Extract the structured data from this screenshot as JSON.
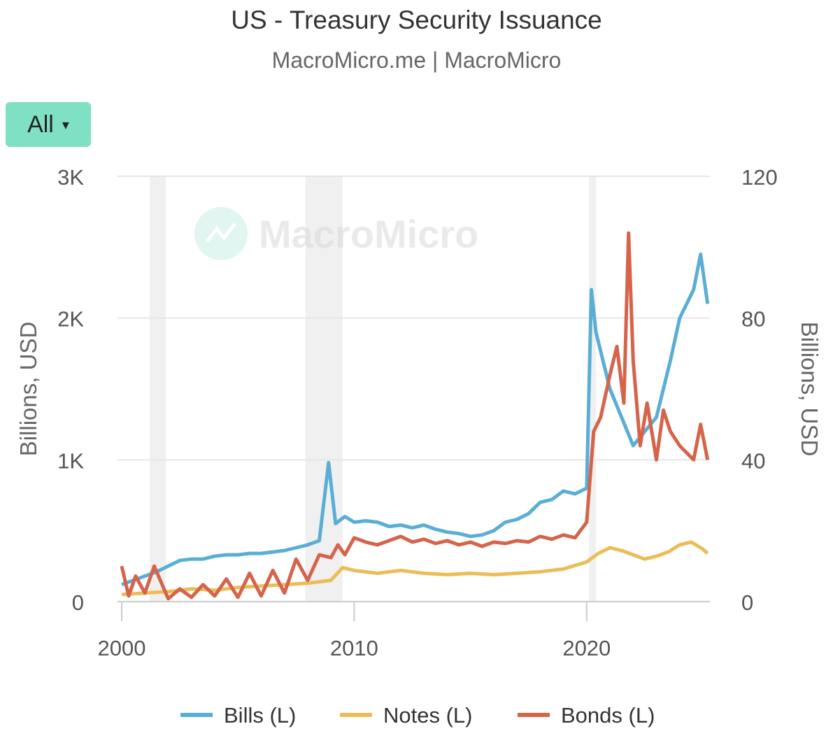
{
  "title": "US - Treasury Security Issuance",
  "subtitle": "MacroMicro.me | MacroMicro",
  "range_selector": {
    "label": "All",
    "caret": "▾"
  },
  "watermark": "MacroMicro",
  "colors": {
    "bills": "#5aaed6",
    "notes": "#ebbd58",
    "bonds": "#d5644a",
    "grid": "#e6e6e6",
    "recession": "#f0f0f0",
    "button": "#7fe0c4"
  },
  "chart_data": {
    "type": "line",
    "title": "US - Treasury Security Issuance",
    "xlabel": "",
    "xlim": [
      2000,
      2025.3
    ],
    "x_ticks": [
      "2000",
      "2010",
      "2020"
    ],
    "y_left": {
      "label": "Billions, USD",
      "lim": [
        0,
        3000
      ],
      "ticks": [
        "0",
        "1K",
        "2K",
        "3K"
      ]
    },
    "y_right": {
      "label": "Billions, USD",
      "lim": [
        0,
        120
      ],
      "ticks": [
        "0",
        "40",
        "80",
        "120"
      ]
    },
    "recession_bands": [
      [
        2001.2,
        2001.9
      ],
      [
        2007.9,
        2009.5
      ],
      [
        2020.1,
        2020.4
      ]
    ],
    "legend_position": "bottom",
    "series": [
      {
        "name": "Bills (L)",
        "axis": "left",
        "color": "#5aaed6",
        "x": [
          2000,
          2000.5,
          2001,
          2001.5,
          2002,
          2002.5,
          2003,
          2003.5,
          2004,
          2004.5,
          2005,
          2005.5,
          2006,
          2006.5,
          2007,
          2007.5,
          2008,
          2008.5,
          2008.9,
          2009.2,
          2009.6,
          2010,
          2010.5,
          2011,
          2011.5,
          2012,
          2012.5,
          2013,
          2013.5,
          2014,
          2014.5,
          2015,
          2015.5,
          2016,
          2016.5,
          2017,
          2017.5,
          2018,
          2018.5,
          2019,
          2019.5,
          2020,
          2020.2,
          2020.4,
          2020.7,
          2021,
          2021.5,
          2022,
          2022.5,
          2023,
          2023.3,
          2023.6,
          2024,
          2024.3,
          2024.6,
          2024.9,
          2025.2
        ],
        "values": [
          120,
          150,
          180,
          210,
          250,
          290,
          300,
          300,
          320,
          330,
          330,
          340,
          340,
          350,
          360,
          380,
          400,
          430,
          980,
          550,
          600,
          560,
          570,
          560,
          530,
          540,
          520,
          540,
          510,
          490,
          480,
          460,
          470,
          500,
          560,
          580,
          620,
          700,
          720,
          780,
          760,
          800,
          2200,
          1900,
          1700,
          1500,
          1300,
          1100,
          1200,
          1300,
          1500,
          1700,
          2000,
          2100,
          2200,
          2450,
          2100
        ]
      },
      {
        "name": "Notes (L)",
        "axis": "left",
        "color": "#ebbd58",
        "x": [
          2000,
          2001,
          2002,
          2003,
          2004,
          2005,
          2006,
          2007,
          2008,
          2009,
          2009.5,
          2010,
          2011,
          2012,
          2013,
          2014,
          2015,
          2016,
          2017,
          2018,
          2019,
          2020,
          2020.5,
          2021,
          2021.5,
          2022,
          2022.5,
          2023,
          2023.5,
          2024,
          2024.5,
          2025,
          2025.2
        ],
        "values": [
          50,
          60,
          70,
          90,
          80,
          100,
          110,
          120,
          130,
          150,
          240,
          220,
          200,
          220,
          200,
          190,
          200,
          190,
          200,
          210,
          230,
          280,
          340,
          380,
          360,
          330,
          300,
          320,
          350,
          400,
          420,
          370,
          340
        ]
      },
      {
        "name": "Bonds (L)",
        "axis": "left",
        "color": "#d5644a",
        "x": [
          2000,
          2000.3,
          2000.6,
          2001,
          2001.4,
          2002,
          2002.5,
          2003,
          2003.5,
          2004,
          2004.5,
          2005,
          2005.5,
          2006,
          2006.5,
          2007,
          2007.5,
          2008,
          2008.5,
          2009,
          2009.3,
          2009.6,
          2010,
          2010.5,
          2011,
          2011.5,
          2012,
          2012.5,
          2013,
          2013.5,
          2014,
          2014.5,
          2015,
          2015.5,
          2016,
          2016.5,
          2017,
          2017.5,
          2018,
          2018.5,
          2019,
          2019.5,
          2020,
          2020.3,
          2020.6,
          2021,
          2021.3,
          2021.6,
          2021.8,
          2022,
          2022.3,
          2022.6,
          2023,
          2023.3,
          2023.6,
          2024,
          2024.3,
          2024.6,
          2024.9,
          2025.2
        ],
        "values": [
          250,
          40,
          180,
          60,
          250,
          20,
          90,
          30,
          120,
          40,
          160,
          30,
          200,
          40,
          220,
          60,
          300,
          150,
          330,
          310,
          400,
          330,
          450,
          420,
          400,
          430,
          460,
          420,
          440,
          410,
          430,
          400,
          420,
          390,
          420,
          410,
          430,
          420,
          460,
          440,
          470,
          450,
          560,
          1200,
          1300,
          1600,
          1800,
          1400,
          2600,
          1700,
          1100,
          1400,
          1000,
          1350,
          1200,
          1100,
          1050,
          1000,
          1250,
          1000
        ]
      }
    ]
  },
  "legend": [
    {
      "label": "Bills (L)",
      "color": "#5aaed6"
    },
    {
      "label": "Notes (L)",
      "color": "#ebbd58"
    },
    {
      "label": "Bonds (L)",
      "color": "#d5644a"
    }
  ]
}
